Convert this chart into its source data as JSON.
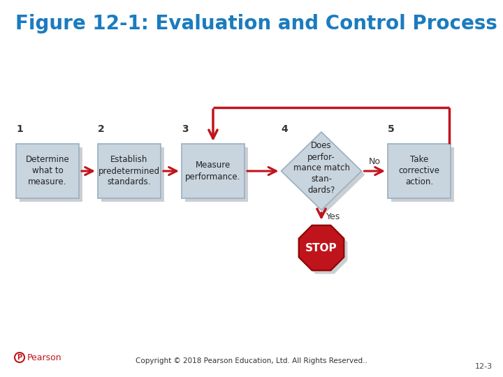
{
  "title": "Figure 12-1: Evaluation and Control Process",
  "title_color": "#1b7bbf",
  "title_fontsize": 20,
  "bg_color": "#ffffff",
  "box_color": "#c8d4de",
  "box_edge_color": "#9aafc0",
  "box_text_color": "#222222",
  "arrow_color": "#c0141c",
  "step_numbers": [
    "1",
    "2",
    "3",
    "4",
    "5"
  ],
  "step_labels": [
    "Determine\nwhat to\nmeasure.",
    "Establish\npredetermined\nstandards.",
    "Measure\nperformance.",
    "Does\nperfor-\nmance match\nstan-\ndards?",
    "Take\ncorrective\naction."
  ],
  "yes_label": "Yes",
  "no_label": "No",
  "stop_label": "STOP",
  "stop_color": "#c0141c",
  "stop_text_color": "#ffffff",
  "copyright_text": "Copyright © 2018 Pearson Education, Ltd. All Rights Reserved..",
  "page_number": "12-3",
  "pearson_text": "Pearson",
  "shadow_color": "#a0a8b0",
  "shadow_alpha": 0.55
}
